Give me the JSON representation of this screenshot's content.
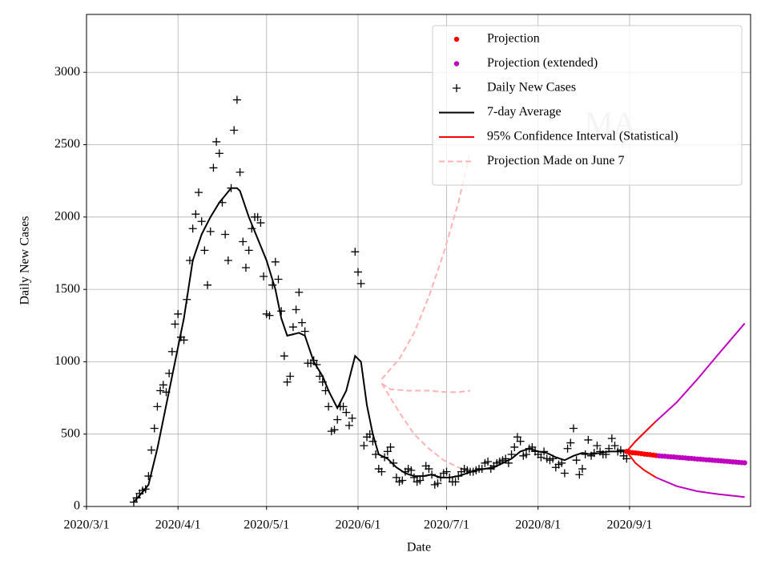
{
  "chart_data": {
    "type": "line",
    "xlabel": "Date",
    "ylabel": "Daily New Cases",
    "annotation": "MA",
    "xlim": [
      "2020-03-01",
      "2020-10-12"
    ],
    "ylim": [
      0,
      3400
    ],
    "xticks": [
      {
        "value": "2020-03-01",
        "label": "2020/3/1"
      },
      {
        "value": "2020-04-01",
        "label": "2020/4/1"
      },
      {
        "value": "2020-05-01",
        "label": "2020/5/1"
      },
      {
        "value": "2020-06-01",
        "label": "2020/6/1"
      },
      {
        "value": "2020-07-01",
        "label": "2020/7/1"
      },
      {
        "value": "2020-08-01",
        "label": "2020/8/1"
      },
      {
        "value": "2020-09-01",
        "label": "2020/9/1"
      }
    ],
    "yticks": [
      0,
      500,
      1000,
      1500,
      2000,
      2500,
      3000
    ],
    "grid": true,
    "legend": "upper right",
    "series": [
      {
        "name": "Projection",
        "color": "#ff0000",
        "style": "dot",
        "x": [
          "2020-08-31",
          "2020-09-01",
          "2020-09-02",
          "2020-09-03",
          "2020-09-04",
          "2020-09-05",
          "2020-09-06",
          "2020-09-07",
          "2020-09-08",
          "2020-09-09",
          "2020-09-10"
        ],
        "values": [
          380,
          375,
          372,
          370,
          368,
          365,
          362,
          360,
          358,
          355,
          352
        ]
      },
      {
        "name": "Projection (extended)",
        "color": "#bf00bf",
        "style": "dot",
        "x": [
          "2020-09-11",
          "2020-09-12",
          "2020-09-13",
          "2020-09-14",
          "2020-09-15",
          "2020-09-16",
          "2020-09-17",
          "2020-09-18",
          "2020-09-19",
          "2020-09-20",
          "2020-09-21",
          "2020-09-22",
          "2020-09-23",
          "2020-09-24",
          "2020-09-25",
          "2020-09-26",
          "2020-09-27",
          "2020-09-28",
          "2020-09-29",
          "2020-09-30",
          "2020-10-01",
          "2020-10-02",
          "2020-10-03",
          "2020-10-04",
          "2020-10-05",
          "2020-10-06",
          "2020-10-07",
          "2020-10-08",
          "2020-10-09",
          "2020-10-10"
        ],
        "values": [
          350,
          348,
          347,
          345,
          343,
          342,
          340,
          338,
          337,
          335,
          333,
          332,
          330,
          328,
          327,
          325,
          323,
          322,
          320,
          318,
          317,
          315,
          313,
          312,
          310,
          308,
          307,
          305,
          303,
          302
        ]
      },
      {
        "name": "Daily New Cases",
        "color": "#000000",
        "style": "plus",
        "x": [
          "2020-03-17",
          "2020-03-18",
          "2020-03-19",
          "2020-03-20",
          "2020-03-21",
          "2020-03-22",
          "2020-03-23",
          "2020-03-24",
          "2020-03-25",
          "2020-03-26",
          "2020-03-27",
          "2020-03-28",
          "2020-03-29",
          "2020-03-30",
          "2020-03-31",
          "2020-04-01",
          "2020-04-02",
          "2020-04-03",
          "2020-04-04",
          "2020-04-05",
          "2020-04-06",
          "2020-04-07",
          "2020-04-08",
          "2020-04-09",
          "2020-04-10",
          "2020-04-11",
          "2020-04-12",
          "2020-04-13",
          "2020-04-14",
          "2020-04-15",
          "2020-04-16",
          "2020-04-17",
          "2020-04-18",
          "2020-04-19",
          "2020-04-20",
          "2020-04-21",
          "2020-04-22",
          "2020-04-23",
          "2020-04-24",
          "2020-04-25",
          "2020-04-26",
          "2020-04-27",
          "2020-04-28",
          "2020-04-29",
          "2020-04-30",
          "2020-05-01",
          "2020-05-02",
          "2020-05-03",
          "2020-05-04",
          "2020-05-05",
          "2020-05-06",
          "2020-05-07",
          "2020-05-08",
          "2020-05-09",
          "2020-05-10",
          "2020-05-11",
          "2020-05-12",
          "2020-05-13",
          "2020-05-14",
          "2020-05-15",
          "2020-05-16",
          "2020-05-17",
          "2020-05-18",
          "2020-05-19",
          "2020-05-20",
          "2020-05-21",
          "2020-05-22",
          "2020-05-23",
          "2020-05-24",
          "2020-05-25",
          "2020-05-26",
          "2020-05-27",
          "2020-05-28",
          "2020-05-29",
          "2020-05-30",
          "2020-05-31",
          "2020-06-01",
          "2020-06-02",
          "2020-06-03",
          "2020-06-04",
          "2020-06-05",
          "2020-06-06",
          "2020-06-07",
          "2020-06-08",
          "2020-06-09",
          "2020-06-10",
          "2020-06-11",
          "2020-06-12",
          "2020-06-13",
          "2020-06-14",
          "2020-06-15",
          "2020-06-16",
          "2020-06-17",
          "2020-06-18",
          "2020-06-19",
          "2020-06-20",
          "2020-06-21",
          "2020-06-22",
          "2020-06-23",
          "2020-06-24",
          "2020-06-25",
          "2020-06-26",
          "2020-06-27",
          "2020-06-28",
          "2020-06-29",
          "2020-06-30",
          "2020-07-01",
          "2020-07-02",
          "2020-07-03",
          "2020-07-04",
          "2020-07-05",
          "2020-07-06",
          "2020-07-07",
          "2020-07-08",
          "2020-07-09",
          "2020-07-10",
          "2020-07-11",
          "2020-07-12",
          "2020-07-13",
          "2020-07-14",
          "2020-07-15",
          "2020-07-16",
          "2020-07-17",
          "2020-07-18",
          "2020-07-19",
          "2020-07-20",
          "2020-07-21",
          "2020-07-22",
          "2020-07-23",
          "2020-07-24",
          "2020-07-25",
          "2020-07-26",
          "2020-07-27",
          "2020-07-28",
          "2020-07-29",
          "2020-07-30",
          "2020-07-31",
          "2020-08-01",
          "2020-08-02",
          "2020-08-03",
          "2020-08-04",
          "2020-08-05",
          "2020-08-06",
          "2020-08-07",
          "2020-08-08",
          "2020-08-09",
          "2020-08-10",
          "2020-08-11",
          "2020-08-12",
          "2020-08-13",
          "2020-08-14",
          "2020-08-15",
          "2020-08-16",
          "2020-08-17",
          "2020-08-18",
          "2020-08-19",
          "2020-08-20",
          "2020-08-21",
          "2020-08-22",
          "2020-08-23",
          "2020-08-24",
          "2020-08-25",
          "2020-08-26",
          "2020-08-27",
          "2020-08-28",
          "2020-08-29",
          "2020-08-30",
          "2020-08-31"
        ],
        "values": [
          30,
          60,
          90,
          110,
          120,
          210,
          390,
          540,
          690,
          800,
          840,
          790,
          920,
          1070,
          1260,
          1330,
          1170,
          1150,
          1430,
          1700,
          1920,
          2020,
          2170,
          1970,
          1770,
          1530,
          1900,
          2340,
          2520,
          2440,
          2100,
          1880,
          1700,
          2200,
          2600,
          2810,
          2310,
          1830,
          1650,
          1770,
          1920,
          2000,
          2000,
          1960,
          1590,
          1330,
          1320,
          1530,
          1690,
          1570,
          1350,
          1040,
          860,
          900,
          1240,
          1360,
          1480,
          1270,
          1210,
          990,
          990,
          1010,
          980,
          900,
          860,
          800,
          690,
          520,
          530,
          600,
          690,
          690,
          650,
          560,
          610,
          1760,
          1620,
          1540,
          420,
          480,
          500,
          450,
          360,
          260,
          240,
          340,
          380,
          410,
          300,
          200,
          170,
          180,
          240,
          260,
          250,
          200,
          170,
          180,
          210,
          280,
          260,
          220,
          150,
          160,
          200,
          230,
          240,
          200,
          170,
          170,
          210,
          240,
          260,
          250,
          240,
          240,
          250,
          260,
          260,
          300,
          310,
          260,
          280,
          300,
          310,
          320,
          330,
          300,
          360,
          410,
          480,
          450,
          350,
          360,
          400,
          410,
          380,
          360,
          340,
          380,
          330,
          320,
          330,
          270,
          290,
          300,
          230,
          400,
          440,
          540,
          320,
          220,
          260,
          360,
          460,
          350,
          370,
          420,
          380,
          360,
          360,
          400,
          470,
          420,
          380,
          390,
          350,
          330
        ]
      },
      {
        "name": "7-day Average",
        "color": "#000000",
        "style": "line",
        "x": [
          "2020-03-17",
          "2020-03-20",
          "2020-03-22",
          "2020-03-25",
          "2020-03-28",
          "2020-03-31",
          "2020-04-03",
          "2020-04-06",
          "2020-04-09",
          "2020-04-12",
          "2020-04-15",
          "2020-04-17",
          "2020-04-19",
          "2020-04-21",
          "2020-04-22",
          "2020-04-25",
          "2020-04-28",
          "2020-05-01",
          "2020-05-04",
          "2020-05-06",
          "2020-05-08",
          "2020-05-10",
          "2020-05-12",
          "2020-05-14",
          "2020-05-17",
          "2020-05-20",
          "2020-05-22",
          "2020-05-25",
          "2020-05-28",
          "2020-05-31",
          "2020-06-02",
          "2020-06-04",
          "2020-06-06",
          "2020-06-08",
          "2020-06-11",
          "2020-06-14",
          "2020-06-17",
          "2020-06-20",
          "2020-06-23",
          "2020-06-26",
          "2020-06-29",
          "2020-07-02",
          "2020-07-05",
          "2020-07-08",
          "2020-07-11",
          "2020-07-14",
          "2020-07-17",
          "2020-07-20",
          "2020-07-23",
          "2020-07-26",
          "2020-07-29",
          "2020-08-01",
          "2020-08-04",
          "2020-08-07",
          "2020-08-10",
          "2020-08-13",
          "2020-08-16",
          "2020-08-19",
          "2020-08-22",
          "2020-08-25",
          "2020-08-28",
          "2020-08-31"
        ],
        "values": [
          30,
          100,
          150,
          400,
          700,
          1000,
          1300,
          1700,
          1880,
          2000,
          2100,
          2150,
          2200,
          2200,
          2180,
          2000,
          1850,
          1700,
          1500,
          1300,
          1180,
          1190,
          1200,
          1180,
          1000,
          900,
          800,
          680,
          800,
          1040,
          1000,
          700,
          500,
          360,
          330,
          270,
          230,
          210,
          210,
          220,
          200,
          200,
          210,
          230,
          250,
          260,
          270,
          300,
          330,
          380,
          400,
          380,
          370,
          340,
          320,
          350,
          370,
          360,
          370,
          380,
          380,
          380
        ]
      },
      {
        "name": "95% Confidence Interval (Statistical)",
        "color": "#ff0000",
        "style": "line",
        "x": [
          "2020-08-31",
          "2020-09-03",
          "2020-09-06",
          "2020-09-10"
        ],
        "values": [
          380,
          450,
          510,
          590
        ]
      },
      {
        "name": "Projection Made on June 7",
        "color": "#ffb3b3",
        "style": "dashed",
        "x": [
          "2020-06-09",
          "2020-06-12",
          "2020-06-18",
          "2020-06-25",
          "2020-07-01",
          "2020-07-05",
          "2020-07-09"
        ],
        "values": [
          850,
          810,
          800,
          800,
          790,
          790,
          800
        ]
      },
      {
        "color": "#ff0000",
        "style": "line",
        "x": [
          "2020-08-31",
          "2020-09-03",
          "2020-09-06",
          "2020-09-10"
        ],
        "values": [
          380,
          300,
          250,
          200
        ]
      },
      {
        "color": "#bf00bf",
        "style": "line",
        "x": [
          "2020-09-10",
          "2020-09-17",
          "2020-09-24",
          "2020-10-01",
          "2020-10-10"
        ],
        "values": [
          590,
          720,
          880,
          1050,
          1265
        ]
      },
      {
        "color": "#bf00bf",
        "style": "line",
        "x": [
          "2020-09-10",
          "2020-09-17",
          "2020-09-24",
          "2020-10-01",
          "2020-10-10"
        ],
        "values": [
          200,
          140,
          105,
          85,
          65
        ]
      },
      {
        "color": "#ffb3b3",
        "style": "dashed",
        "x": [
          "2020-06-09",
          "2020-06-15",
          "2020-06-20",
          "2020-06-25",
          "2020-06-30",
          "2020-07-05",
          "2020-07-09"
        ],
        "values": [
          880,
          1020,
          1200,
          1450,
          1750,
          2100,
          2450
        ]
      },
      {
        "color": "#ffb3b3",
        "style": "dashed",
        "x": [
          "2020-06-09",
          "2020-06-15",
          "2020-06-20",
          "2020-06-25",
          "2020-06-30",
          "2020-07-05",
          "2020-07-09"
        ],
        "values": [
          850,
          650,
          500,
          400,
          320,
          270,
          240
        ]
      }
    ]
  }
}
